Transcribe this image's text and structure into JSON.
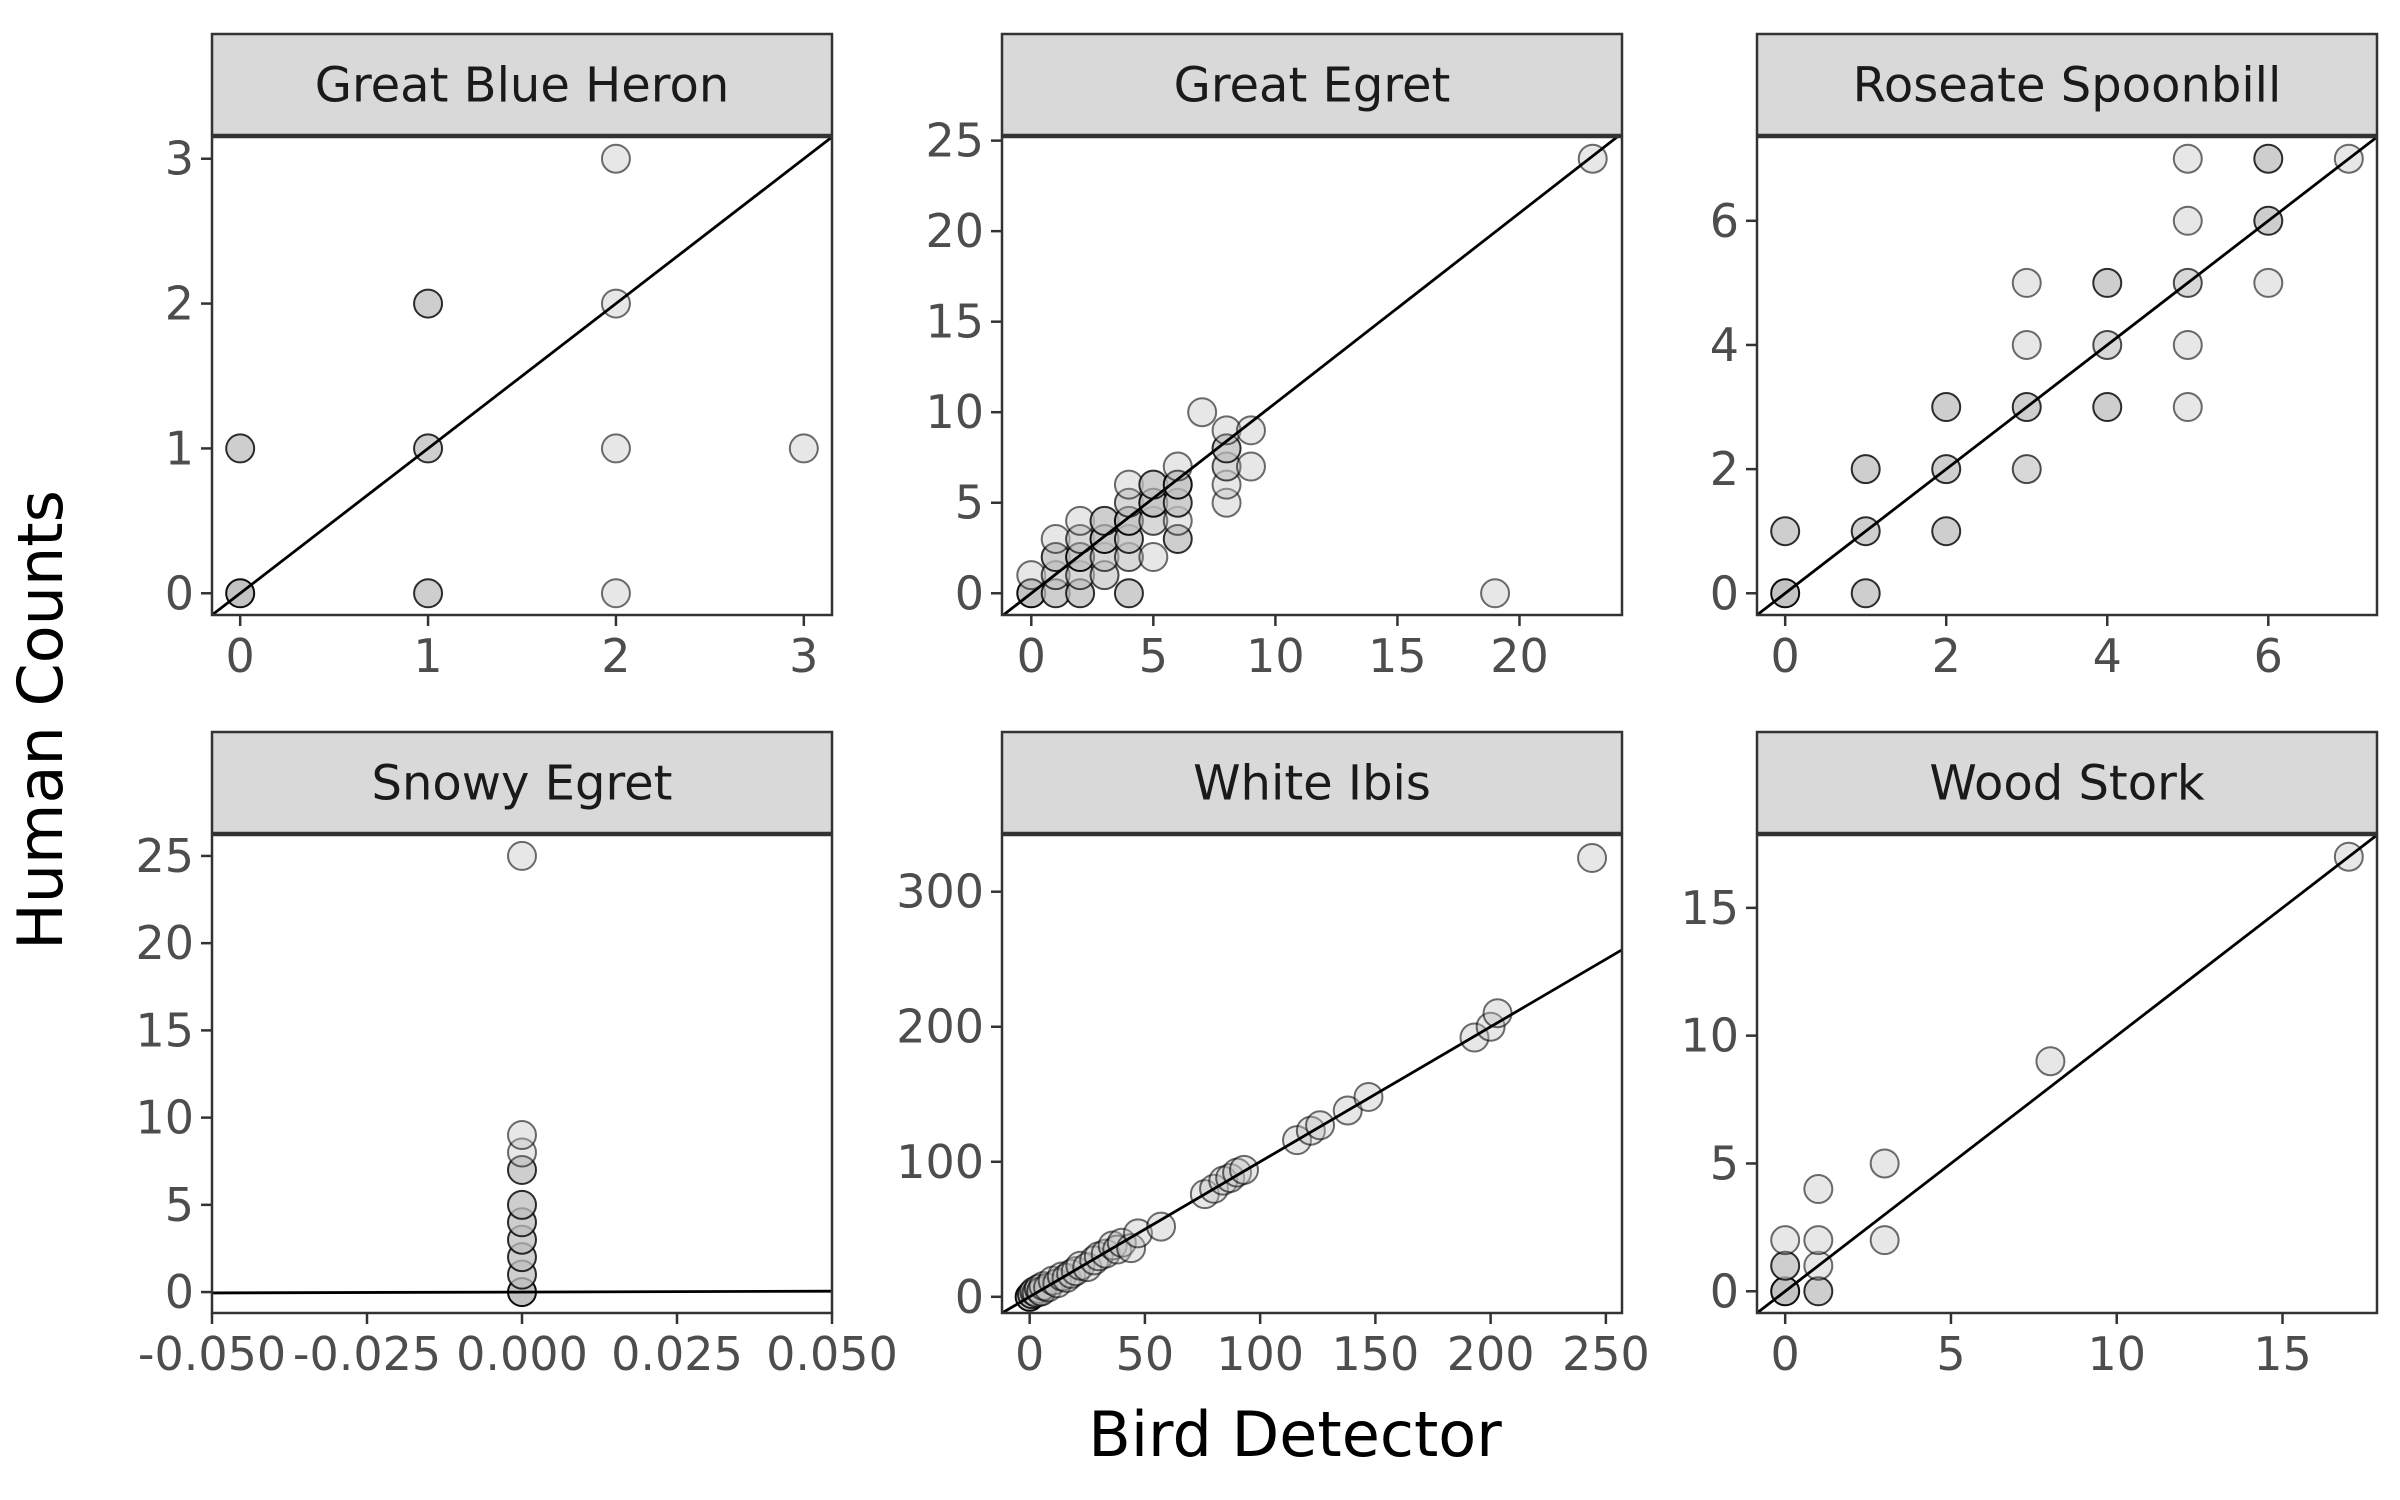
{
  "figure": {
    "xlabel": "Bird Detector",
    "ylabel": "Human Counts",
    "colors": {
      "point_fill": "#bfbfbf",
      "point_stroke": "#000000",
      "strip_fill": "#d9d9d9",
      "panel_border": "#333333",
      "fit_line": "#000000"
    }
  },
  "chart_data": [
    {
      "type": "scatter",
      "title": "Great Blue Heron",
      "xlim": [
        -0.15,
        3.15
      ],
      "ylim": [
        -0.15,
        3.15
      ],
      "xticks": [
        0,
        1,
        2,
        3
      ],
      "xtick_labels": [
        "0",
        "1",
        "2",
        "3"
      ],
      "yticks": [
        0,
        1,
        2,
        3
      ],
      "ytick_labels": [
        "0",
        "1",
        "2",
        "3"
      ],
      "fit_line": {
        "slope": 1,
        "intercept": 0
      },
      "points": [
        {
          "x": 0,
          "y": 0,
          "n": 6
        },
        {
          "x": 0,
          "y": 1,
          "n": 3
        },
        {
          "x": 1,
          "y": 2,
          "n": 3
        },
        {
          "x": 1,
          "y": 1,
          "n": 3
        },
        {
          "x": 1,
          "y": 0,
          "n": 3
        },
        {
          "x": 2,
          "y": 3,
          "n": 1
        },
        {
          "x": 2,
          "y": 2,
          "n": 1
        },
        {
          "x": 2,
          "y": 1,
          "n": 1
        },
        {
          "x": 2,
          "y": 0,
          "n": 1
        },
        {
          "x": 3,
          "y": 1,
          "n": 1
        }
      ]
    },
    {
      "type": "scatter",
      "title": "Great Egret",
      "xlim": [
        -1.2,
        24.2
      ],
      "ylim": [
        -1.2,
        25.2
      ],
      "xticks": [
        0,
        5,
        10,
        15,
        20
      ],
      "xtick_labels": [
        "0",
        "5",
        "10",
        "15",
        "20"
      ],
      "yticks": [
        0,
        5,
        10,
        15,
        20,
        25
      ],
      "ytick_labels": [
        "0",
        "5",
        "10",
        "15",
        "20",
        "25"
      ],
      "fit_line": {
        "slope": 1.05,
        "intercept": 0
      },
      "points": [
        {
          "x": 0,
          "y": 0,
          "n": 6
        },
        {
          "x": 0,
          "y": 1,
          "n": 1
        },
        {
          "x": 1,
          "y": 0,
          "n": 3
        },
        {
          "x": 1,
          "y": 1,
          "n": 2
        },
        {
          "x": 1,
          "y": 2,
          "n": 3
        },
        {
          "x": 1,
          "y": 3,
          "n": 1
        },
        {
          "x": 2,
          "y": 0,
          "n": 3
        },
        {
          "x": 2,
          "y": 1,
          "n": 2
        },
        {
          "x": 2,
          "y": 2,
          "n": 4
        },
        {
          "x": 2,
          "y": 3,
          "n": 2
        },
        {
          "x": 2,
          "y": 4,
          "n": 1
        },
        {
          "x": 3,
          "y": 1,
          "n": 2
        },
        {
          "x": 3,
          "y": 2,
          "n": 2
        },
        {
          "x": 3,
          "y": 3,
          "n": 4
        },
        {
          "x": 3,
          "y": 4,
          "n": 3
        },
        {
          "x": 4,
          "y": 0,
          "n": 3
        },
        {
          "x": 4,
          "y": 2,
          "n": 2
        },
        {
          "x": 4,
          "y": 3,
          "n": 3
        },
        {
          "x": 4,
          "y": 4,
          "n": 4
        },
        {
          "x": 4,
          "y": 5,
          "n": 2
        },
        {
          "x": 4,
          "y": 6,
          "n": 1
        },
        {
          "x": 5,
          "y": 2,
          "n": 1
        },
        {
          "x": 5,
          "y": 4,
          "n": 2
        },
        {
          "x": 5,
          "y": 5,
          "n": 4
        },
        {
          "x": 5,
          "y": 6,
          "n": 3
        },
        {
          "x": 6,
          "y": 3,
          "n": 3
        },
        {
          "x": 6,
          "y": 4,
          "n": 1
        },
        {
          "x": 6,
          "y": 5,
          "n": 3
        },
        {
          "x": 6,
          "y": 6,
          "n": 4
        },
        {
          "x": 6,
          "y": 7,
          "n": 1
        },
        {
          "x": 7,
          "y": 10,
          "n": 1
        },
        {
          "x": 8,
          "y": 5,
          "n": 1
        },
        {
          "x": 8,
          "y": 6,
          "n": 1
        },
        {
          "x": 8,
          "y": 7,
          "n": 2
        },
        {
          "x": 8,
          "y": 8,
          "n": 3
        },
        {
          "x": 8,
          "y": 9,
          "n": 1
        },
        {
          "x": 9,
          "y": 7,
          "n": 1
        },
        {
          "x": 9,
          "y": 9,
          "n": 1
        },
        {
          "x": 19,
          "y": 0,
          "n": 1
        },
        {
          "x": 23,
          "y": 24,
          "n": 1
        }
      ]
    },
    {
      "type": "scatter",
      "title": "Roseate Spoonbill",
      "xlim": [
        -0.35,
        7.35
      ],
      "ylim": [
        -0.35,
        7.35
      ],
      "xticks": [
        0,
        2,
        4,
        6
      ],
      "xtick_labels": [
        "0",
        "2",
        "4",
        "6"
      ],
      "yticks": [
        0,
        2,
        4,
        6
      ],
      "ytick_labels": [
        "0",
        "2",
        "4",
        "6"
      ],
      "fit_line": {
        "slope": 1,
        "intercept": 0
      },
      "points": [
        {
          "x": 0,
          "y": 0,
          "n": 6
        },
        {
          "x": 0,
          "y": 1,
          "n": 3
        },
        {
          "x": 1,
          "y": 0,
          "n": 3
        },
        {
          "x": 1,
          "y": 1,
          "n": 3
        },
        {
          "x": 1,
          "y": 2,
          "n": 3
        },
        {
          "x": 2,
          "y": 1,
          "n": 3
        },
        {
          "x": 2,
          "y": 2,
          "n": 3
        },
        {
          "x": 2,
          "y": 3,
          "n": 3
        },
        {
          "x": 3,
          "y": 2,
          "n": 2
        },
        {
          "x": 3,
          "y": 3,
          "n": 3
        },
        {
          "x": 3,
          "y": 4,
          "n": 1
        },
        {
          "x": 3,
          "y": 5,
          "n": 1
        },
        {
          "x": 4,
          "y": 3,
          "n": 3
        },
        {
          "x": 4,
          "y": 4,
          "n": 2
        },
        {
          "x": 4,
          "y": 5,
          "n": 3
        },
        {
          "x": 5,
          "y": 3,
          "n": 1
        },
        {
          "x": 5,
          "y": 4,
          "n": 1
        },
        {
          "x": 5,
          "y": 5,
          "n": 2
        },
        {
          "x": 5,
          "y": 6,
          "n": 1
        },
        {
          "x": 5,
          "y": 7,
          "n": 1
        },
        {
          "x": 6,
          "y": 5,
          "n": 1
        },
        {
          "x": 6,
          "y": 6,
          "n": 3
        },
        {
          "x": 6,
          "y": 7,
          "n": 3
        },
        {
          "x": 7,
          "y": 7,
          "n": 1
        }
      ]
    },
    {
      "type": "scatter",
      "title": "Snowy Egret",
      "xlim": [
        -0.05,
        0.05
      ],
      "ylim": [
        -1.2,
        26.2
      ],
      "xticks": [
        -0.05,
        -0.025,
        0,
        0.025,
        0.05
      ],
      "xtick_labels": [
        "-0.050",
        "-0.025",
        "0.000",
        "0.025",
        "0.050"
      ],
      "yticks": [
        0,
        5,
        10,
        15,
        20,
        25
      ],
      "ytick_labels": [
        "0",
        "5",
        "10",
        "15",
        "20",
        "25"
      ],
      "fit_line": {
        "slope": 1,
        "intercept": 0
      },
      "points": [
        {
          "x": 0,
          "y": 0,
          "n": 6
        },
        {
          "x": 0,
          "y": 1,
          "n": 3
        },
        {
          "x": 0,
          "y": 2,
          "n": 3
        },
        {
          "x": 0,
          "y": 3,
          "n": 3
        },
        {
          "x": 0,
          "y": 4,
          "n": 3
        },
        {
          "x": 0,
          "y": 5,
          "n": 3
        },
        {
          "x": 0,
          "y": 7,
          "n": 3
        },
        {
          "x": 0,
          "y": 8,
          "n": 1
        },
        {
          "x": 0,
          "y": 9,
          "n": 1
        },
        {
          "x": 0,
          "y": 25,
          "n": 1
        }
      ]
    },
    {
      "type": "scatter",
      "title": "White Ibis",
      "xlim": [
        -12,
        257
      ],
      "ylim": [
        -12,
        342
      ],
      "xticks": [
        0,
        50,
        100,
        150,
        200,
        250
      ],
      "xtick_labels": [
        "0",
        "50",
        "100",
        "150",
        "200",
        "250"
      ],
      "yticks": [
        0,
        100,
        200,
        300
      ],
      "ytick_labels": [
        "0",
        "100",
        "200",
        "300"
      ],
      "fit_line": {
        "slope": 1,
        "intercept": 0
      },
      "points": [
        {
          "x": 0,
          "y": 0,
          "n": 6
        },
        {
          "x": 1,
          "y": 2,
          "n": 3
        },
        {
          "x": 2,
          "y": 4,
          "n": 2
        },
        {
          "x": 3,
          "y": 3,
          "n": 2
        },
        {
          "x": 4,
          "y": 6,
          "n": 2
        },
        {
          "x": 5,
          "y": 4,
          "n": 2
        },
        {
          "x": 6,
          "y": 8,
          "n": 1
        },
        {
          "x": 8,
          "y": 7,
          "n": 1
        },
        {
          "x": 10,
          "y": 12,
          "n": 1
        },
        {
          "x": 12,
          "y": 10,
          "n": 1
        },
        {
          "x": 14,
          "y": 15,
          "n": 1
        },
        {
          "x": 16,
          "y": 14,
          "n": 1
        },
        {
          "x": 18,
          "y": 17,
          "n": 1
        },
        {
          "x": 20,
          "y": 19,
          "n": 1
        },
        {
          "x": 22,
          "y": 23,
          "n": 1
        },
        {
          "x": 25,
          "y": 22,
          "n": 1
        },
        {
          "x": 28,
          "y": 27,
          "n": 1
        },
        {
          "x": 30,
          "y": 30,
          "n": 1
        },
        {
          "x": 33,
          "y": 32,
          "n": 1
        },
        {
          "x": 36,
          "y": 38,
          "n": 1
        },
        {
          "x": 38,
          "y": 35,
          "n": 1
        },
        {
          "x": 40,
          "y": 40,
          "n": 1
        },
        {
          "x": 44,
          "y": 36,
          "n": 1
        },
        {
          "x": 47,
          "y": 47,
          "n": 1
        },
        {
          "x": 57,
          "y": 52,
          "n": 1
        },
        {
          "x": 76,
          "y": 76,
          "n": 1
        },
        {
          "x": 80,
          "y": 80,
          "n": 1
        },
        {
          "x": 84,
          "y": 86,
          "n": 1
        },
        {
          "x": 87,
          "y": 88,
          "n": 1
        },
        {
          "x": 90,
          "y": 92,
          "n": 1
        },
        {
          "x": 93,
          "y": 94,
          "n": 1
        },
        {
          "x": 116,
          "y": 116,
          "n": 1
        },
        {
          "x": 122,
          "y": 123,
          "n": 1
        },
        {
          "x": 126,
          "y": 127,
          "n": 1
        },
        {
          "x": 138,
          "y": 138,
          "n": 1
        },
        {
          "x": 147,
          "y": 148,
          "n": 1
        },
        {
          "x": 193,
          "y": 192,
          "n": 1
        },
        {
          "x": 200,
          "y": 200,
          "n": 1
        },
        {
          "x": 203,
          "y": 210,
          "n": 1
        },
        {
          "x": 244,
          "y": 325,
          "n": 1
        }
      ]
    },
    {
      "type": "scatter",
      "title": "Wood Stork",
      "xlim": [
        -0.85,
        17.85
      ],
      "ylim": [
        -0.85,
        17.85
      ],
      "xticks": [
        0,
        5,
        10,
        15
      ],
      "xtick_labels": [
        "0",
        "5",
        "10",
        "15"
      ],
      "yticks": [
        0,
        5,
        10,
        15
      ],
      "ytick_labels": [
        "0",
        "5",
        "10",
        "15"
      ],
      "fit_line": {
        "slope": 1,
        "intercept": 0
      },
      "points": [
        {
          "x": 0,
          "y": 0,
          "n": 6
        },
        {
          "x": 0,
          "y": 1,
          "n": 3
        },
        {
          "x": 0,
          "y": 2,
          "n": 1
        },
        {
          "x": 1,
          "y": 0,
          "n": 3
        },
        {
          "x": 1,
          "y": 1,
          "n": 1
        },
        {
          "x": 1,
          "y": 2,
          "n": 1
        },
        {
          "x": 1,
          "y": 4,
          "n": 1
        },
        {
          "x": 3,
          "y": 2,
          "n": 1
        },
        {
          "x": 3,
          "y": 5,
          "n": 1
        },
        {
          "x": 8,
          "y": 9,
          "n": 1
        },
        {
          "x": 17,
          "y": 17,
          "n": 1
        }
      ]
    }
  ]
}
